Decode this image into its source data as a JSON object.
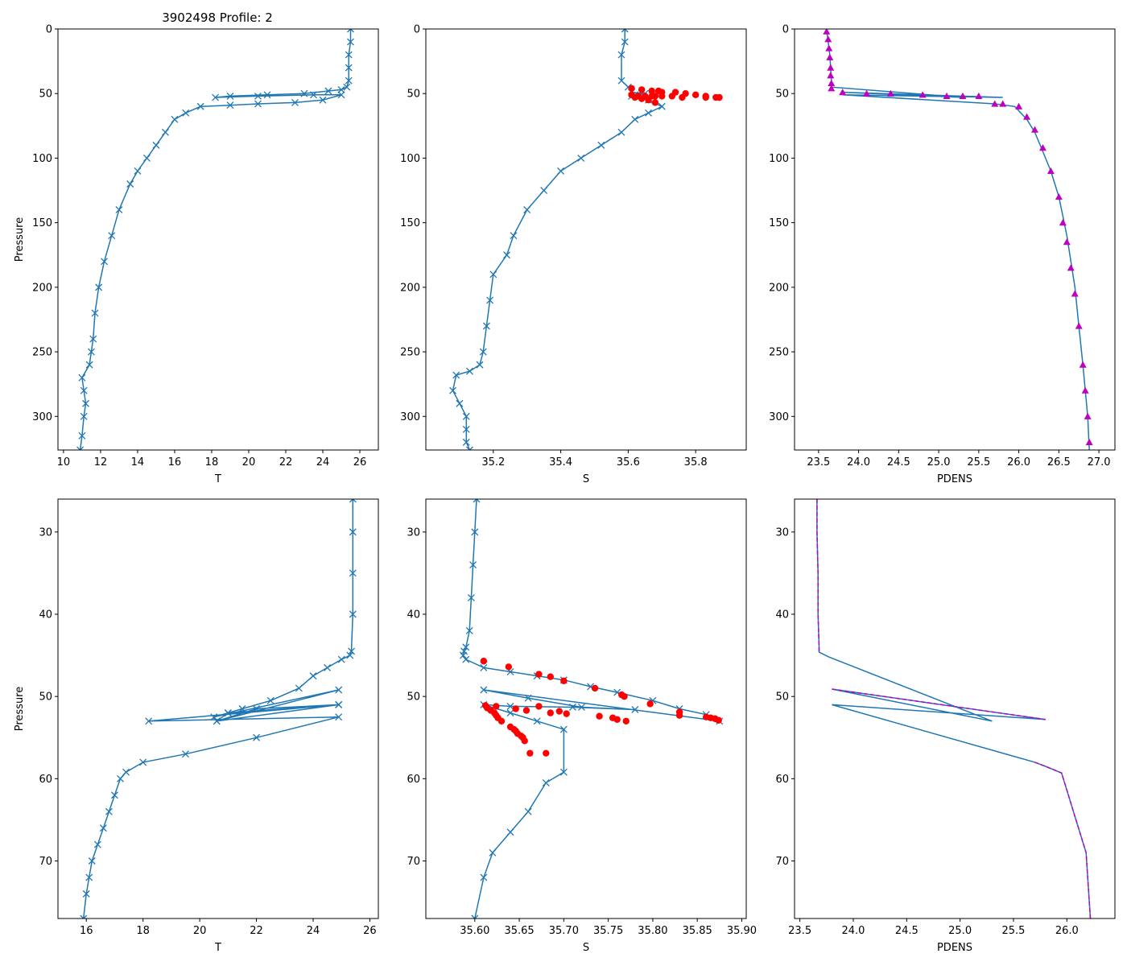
{
  "figure_title": "3902498 Profile: 2",
  "colors": {
    "line": "#1f77b4",
    "flag": "#ff0000",
    "density": "#bf00bf"
  },
  "chart_data": [
    {
      "id": "temp-full",
      "type": "line",
      "title": "3902498 Profile: 2",
      "xlabel": "T",
      "ylabel": "Pressure",
      "xlim": [
        9.7,
        27.0
      ],
      "ylim": [
        326,
        0
      ],
      "xticks": [
        10,
        12,
        14,
        16,
        18,
        20,
        22,
        24,
        26
      ],
      "xtick_labels": [
        "10",
        "12",
        "14",
        "16",
        "18",
        "20",
        "22",
        "24",
        "26"
      ],
      "yticks": [
        0,
        50,
        100,
        150,
        200,
        250,
        300
      ],
      "ytick_labels": [
        "0",
        "50",
        "100",
        "150",
        "200",
        "250",
        "300"
      ],
      "series": [
        {
          "name": "T",
          "marker": "x",
          "color": "#1f77b4",
          "x": [
            25.5,
            25.5,
            25.4,
            25.4,
            25.4,
            25.3,
            25.0,
            24.3,
            23.0,
            21.0,
            19.0,
            18.2,
            20.5,
            23.5,
            25.0,
            24.0,
            22.5,
            20.5,
            19.0,
            17.4,
            16.6,
            16.0,
            15.5,
            15.0,
            14.5,
            14.0,
            13.6,
            13.0,
            12.6,
            12.2,
            11.9,
            11.7,
            11.6,
            11.5,
            11.4,
            11.0,
            11.1,
            11.2,
            11.1,
            11.0,
            10.9
          ],
          "y": [
            0,
            10,
            20,
            30,
            40,
            45,
            47,
            48,
            50,
            51,
            52,
            53,
            52,
            51,
            51,
            55,
            57,
            58,
            59,
            60,
            65,
            70,
            80,
            90,
            100,
            110,
            120,
            140,
            160,
            180,
            200,
            220,
            240,
            250,
            260,
            270,
            280,
            290,
            300,
            315,
            326
          ]
        }
      ]
    },
    {
      "id": "sal-full",
      "type": "line",
      "xlabel": "S",
      "ylabel": "",
      "xlim": [
        35.0,
        35.95
      ],
      "ylim": [
        326,
        0
      ],
      "xticks": [
        35.2,
        35.4,
        35.6,
        35.8
      ],
      "xtick_labels": [
        "35.2",
        "35.4",
        "35.6",
        "35.8"
      ],
      "yticks": [
        0,
        50,
        100,
        150,
        200,
        250,
        300
      ],
      "ytick_labels": [
        "0",
        "50",
        "100",
        "150",
        "200",
        "250",
        "300"
      ],
      "series": [
        {
          "name": "S",
          "marker": "x",
          "color": "#1f77b4",
          "x": [
            35.59,
            35.59,
            35.58,
            35.58,
            35.6,
            35.61,
            35.65,
            35.62,
            35.61,
            35.66,
            35.7,
            35.66,
            35.62,
            35.58,
            35.52,
            35.46,
            35.4,
            35.35,
            35.3,
            35.26,
            35.24,
            35.2,
            35.19,
            35.18,
            35.17,
            35.16,
            35.13,
            35.09,
            35.08,
            35.1,
            35.12,
            35.12,
            35.12,
            35.13
          ],
          "y": [
            0,
            10,
            20,
            40,
            45,
            49,
            50,
            51,
            52,
            55,
            60,
            65,
            70,
            80,
            90,
            100,
            110,
            125,
            140,
            160,
            175,
            190,
            210,
            230,
            250,
            260,
            265,
            268,
            280,
            290,
            300,
            310,
            320,
            326
          ]
        },
        {
          "name": "flagged",
          "marker": "o",
          "color": "#ff0000",
          "line": false,
          "x": [
            35.61,
            35.64,
            35.67,
            35.69,
            35.7,
            35.74,
            35.77,
            35.8,
            35.83,
            35.87,
            35.61,
            35.63,
            35.65,
            35.67,
            35.68,
            35.7,
            35.73,
            35.76,
            35.83,
            35.86,
            35.87,
            35.62,
            35.64,
            35.66,
            35.68
          ],
          "y": [
            46,
            47,
            48,
            48,
            49,
            49,
            50,
            51,
            52,
            53,
            51,
            52,
            52,
            52,
            52,
            52,
            52,
            53,
            53,
            53,
            53,
            53,
            54,
            55,
            57
          ]
        }
      ]
    },
    {
      "id": "dens-full",
      "type": "line",
      "xlabel": "PDENS",
      "ylabel": "",
      "xlim": [
        23.2,
        27.2
      ],
      "ylim": [
        326,
        0
      ],
      "xticks": [
        23.5,
        24.0,
        24.5,
        25.0,
        25.5,
        26.0,
        26.5,
        27.0
      ],
      "xtick_labels": [
        "23.5",
        "24.0",
        "24.5",
        "25.0",
        "25.5",
        "26.0",
        "26.5",
        "27.0"
      ],
      "yticks": [
        0,
        50,
        100,
        150,
        200,
        250,
        300
      ],
      "ytick_labels": [
        "0",
        "50",
        "100",
        "150",
        "200",
        "250",
        "300"
      ],
      "series": [
        {
          "name": "PDENS",
          "marker": "",
          "color": "#1f77b4",
          "x": [
            23.6,
            23.62,
            23.64,
            23.65,
            23.66,
            23.66,
            25.3,
            23.8,
            25.8,
            23.8,
            25.7,
            25.95,
            26.1,
            26.2,
            26.3,
            26.4,
            26.5,
            26.6,
            26.65,
            26.7,
            26.75,
            26.8,
            26.83,
            26.86,
            26.88
          ],
          "y": [
            0,
            10,
            20,
            30,
            40,
            45,
            53,
            49,
            53,
            51,
            58,
            60,
            70,
            80,
            95,
            110,
            130,
            160,
            180,
            200,
            230,
            260,
            280,
            300,
            326
          ]
        },
        {
          "name": "PDENS-flag",
          "marker": "triangle",
          "color": "#bf00bf",
          "line": false,
          "x": [
            23.6,
            23.62,
            23.63,
            23.64,
            23.65,
            23.65,
            23.66,
            23.66,
            23.8,
            24.1,
            24.4,
            24.8,
            25.1,
            25.3,
            25.5,
            25.7,
            25.8,
            26.0,
            26.1,
            26.2,
            26.3,
            26.4,
            26.5,
            26.55,
            26.6,
            26.65,
            26.7,
            26.75,
            26.8,
            26.83,
            26.86,
            26.88
          ],
          "y": [
            2,
            8,
            15,
            22,
            30,
            36,
            42,
            46,
            49,
            50,
            50,
            51,
            52,
            52,
            52,
            58,
            58,
            60,
            68,
            78,
            92,
            110,
            130,
            150,
            165,
            185,
            205,
            230,
            260,
            280,
            300,
            320
          ]
        }
      ]
    },
    {
      "id": "temp-zoom",
      "type": "line",
      "xlabel": "T",
      "ylabel": "Pressure",
      "xlim": [
        15.0,
        26.3
      ],
      "ylim": [
        77,
        26
      ],
      "xticks": [
        16,
        18,
        20,
        22,
        24,
        26
      ],
      "xtick_labels": [
        "16",
        "18",
        "20",
        "22",
        "24",
        "26"
      ],
      "yticks": [
        30,
        40,
        50,
        60,
        70
      ],
      "ytick_labels": [
        "30",
        "40",
        "50",
        "60",
        "70"
      ],
      "series": [
        {
          "name": "T",
          "marker": "x",
          "color": "#1f77b4",
          "x": [
            25.4,
            25.4,
            25.4,
            25.4,
            25.35,
            25.3,
            25.0,
            24.5,
            24.0,
            23.5,
            22.5,
            21.5,
            21.0,
            20.5,
            24.9,
            20.6,
            22.0,
            24.9,
            21.0,
            20.6,
            24.9,
            18.2,
            24.9,
            22.0,
            19.5,
            18.0,
            17.4,
            17.2,
            17.0,
            16.8,
            16.6,
            16.4,
            16.2,
            16.1,
            16.0,
            15.9
          ],
          "y": [
            26,
            30,
            35,
            40,
            44.5,
            45,
            45.5,
            46.5,
            47.5,
            49,
            50.5,
            51.5,
            52,
            52.5,
            49.2,
            53,
            51.5,
            51,
            52,
            53,
            51,
            53,
            52.5,
            55,
            57,
            58,
            59.2,
            60,
            62,
            64,
            66,
            68,
            70,
            72,
            74,
            77
          ]
        }
      ]
    },
    {
      "id": "sal-zoom",
      "type": "line",
      "xlabel": "S",
      "ylabel": "",
      "xlim": [
        35.545,
        35.905
      ],
      "ylim": [
        77,
        26
      ],
      "xticks": [
        35.6,
        35.65,
        35.7,
        35.75,
        35.8,
        35.85,
        35.9
      ],
      "xtick_labels": [
        "35.60",
        "35.65",
        "35.70",
        "35.75",
        "35.80",
        "35.85",
        "35.90"
      ],
      "yticks": [
        30,
        40,
        50,
        60,
        70
      ],
      "ytick_labels": [
        "30",
        "40",
        "50",
        "60",
        "70"
      ],
      "series": [
        {
          "name": "S",
          "marker": "x",
          "color": "#1f77b4",
          "x": [
            35.602,
            35.6,
            35.598,
            35.596,
            35.594,
            35.59,
            35.588,
            35.587,
            35.59,
            35.61,
            35.64,
            35.67,
            35.7,
            35.73,
            35.76,
            35.8,
            35.83,
            35.86,
            35.875,
            35.61,
            35.66,
            35.72,
            35.78,
            35.71,
            35.64,
            35.61,
            35.64,
            35.67,
            35.7,
            35.7,
            35.68,
            35.66,
            35.64,
            35.62,
            35.61,
            35.6
          ],
          "y": [
            26,
            30,
            34,
            38,
            42,
            44,
            44.5,
            45,
            45.5,
            46.5,
            47,
            47.5,
            48,
            48.8,
            49.5,
            50.5,
            51.5,
            52.2,
            53,
            49.2,
            50.2,
            51.3,
            51.6,
            51.3,
            51.2,
            51,
            52,
            53,
            54,
            59.2,
            60.5,
            64,
            66.5,
            69,
            72,
            77
          ]
        },
        {
          "name": "flagged",
          "marker": "o",
          "color": "#ff0000",
          "line": false,
          "x": [
            35.61,
            35.638,
            35.672,
            35.685,
            35.7,
            35.735,
            35.765,
            35.768,
            35.797,
            35.83,
            35.83,
            35.86,
            35.865,
            35.87,
            35.874,
            35.612,
            35.614,
            35.618,
            35.622,
            35.624,
            35.626,
            35.63,
            35.64,
            35.644,
            35.646,
            35.648,
            35.652,
            35.654,
            35.656,
            35.662,
            35.68,
            35.624,
            35.646,
            35.658,
            35.672,
            35.685,
            35.695,
            35.703,
            35.74,
            35.755,
            35.76,
            35.77
          ],
          "y": [
            45.7,
            46.4,
            47.3,
            47.6,
            48.1,
            49.0,
            49.8,
            50.0,
            50.9,
            51.9,
            52.3,
            52.5,
            52.6,
            52.7,
            52.9,
            51.1,
            51.4,
            51.7,
            52.0,
            52.3,
            52.6,
            53.0,
            53.7,
            54.0,
            54.2,
            54.5,
            54.8,
            55.0,
            55.4,
            56.9,
            56.9,
            51.2,
            51.5,
            51.7,
            51.2,
            52.0,
            51.8,
            52.1,
            52.4,
            52.6,
            52.8,
            53.0
          ]
        }
      ]
    },
    {
      "id": "dens-zoom",
      "type": "line",
      "xlabel": "PDENS",
      "ylabel": "",
      "xlim": [
        23.45,
        26.45
      ],
      "ylim": [
        77,
        26
      ],
      "xticks": [
        23.5,
        24.0,
        24.5,
        25.0,
        25.5,
        26.0
      ],
      "xtick_labels": [
        "23.5",
        "24.0",
        "24.5",
        "25.0",
        "25.5",
        "26.0"
      ],
      "yticks": [
        30,
        40,
        50,
        60,
        70
      ],
      "ytick_labels": [
        "30",
        "40",
        "50",
        "60",
        "70"
      ],
      "series": [
        {
          "name": "PDENS",
          "marker": "",
          "color": "#1f77b4",
          "x": [
            23.66,
            23.66,
            23.67,
            23.67,
            23.68,
            23.68,
            23.77,
            25.3,
            23.8,
            25.8,
            23.8,
            25.7,
            25.8,
            25.95,
            26.18,
            26.22
          ],
          "y": [
            26,
            30,
            35,
            40,
            44,
            44.6,
            45.2,
            53,
            49.1,
            52.8,
            51,
            58,
            58.5,
            59.3,
            69,
            77
          ]
        },
        {
          "name": "PDENS-dashed",
          "marker": "",
          "color": "#bf00bf",
          "dashed": true,
          "line": true,
          "x": [
            23.66,
            23.66,
            23.67,
            23.67,
            23.68,
            23.68
          ],
          "y": [
            26,
            30,
            35,
            40,
            44,
            44.6
          ]
        },
        {
          "name": "PDENS-dashed-2",
          "marker": "",
          "color": "#bf00bf",
          "dashed": true,
          "line": true,
          "x": [
            23.8,
            25.8
          ],
          "y": [
            49.1,
            52.8
          ]
        },
        {
          "name": "PDENS-dashed-3",
          "marker": "",
          "color": "#bf00bf",
          "dashed": true,
          "line": true,
          "x": [
            25.7,
            25.8,
            25.95,
            26.18,
            26.22
          ],
          "y": [
            58,
            58.5,
            59.3,
            69,
            77
          ]
        }
      ]
    }
  ]
}
